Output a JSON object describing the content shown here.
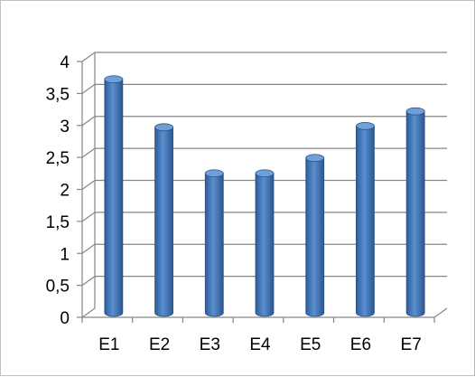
{
  "chart_data": {
    "type": "bar",
    "categories": [
      "E1",
      "E2",
      "E3",
      "E4",
      "E5",
      "E6",
      "E7"
    ],
    "values": [
      3.65,
      2.9,
      2.18,
      2.18,
      2.42,
      2.92,
      3.15
    ],
    "ylim": [
      0,
      4
    ],
    "ytick_labels": [
      "0",
      "0,5",
      "1",
      "1,5",
      "2",
      "2,5",
      "3",
      "3,5",
      "4"
    ],
    "grid": true,
    "three_d": true,
    "bar_color": "#4F81BD",
    "grid_color": "#868686"
  }
}
